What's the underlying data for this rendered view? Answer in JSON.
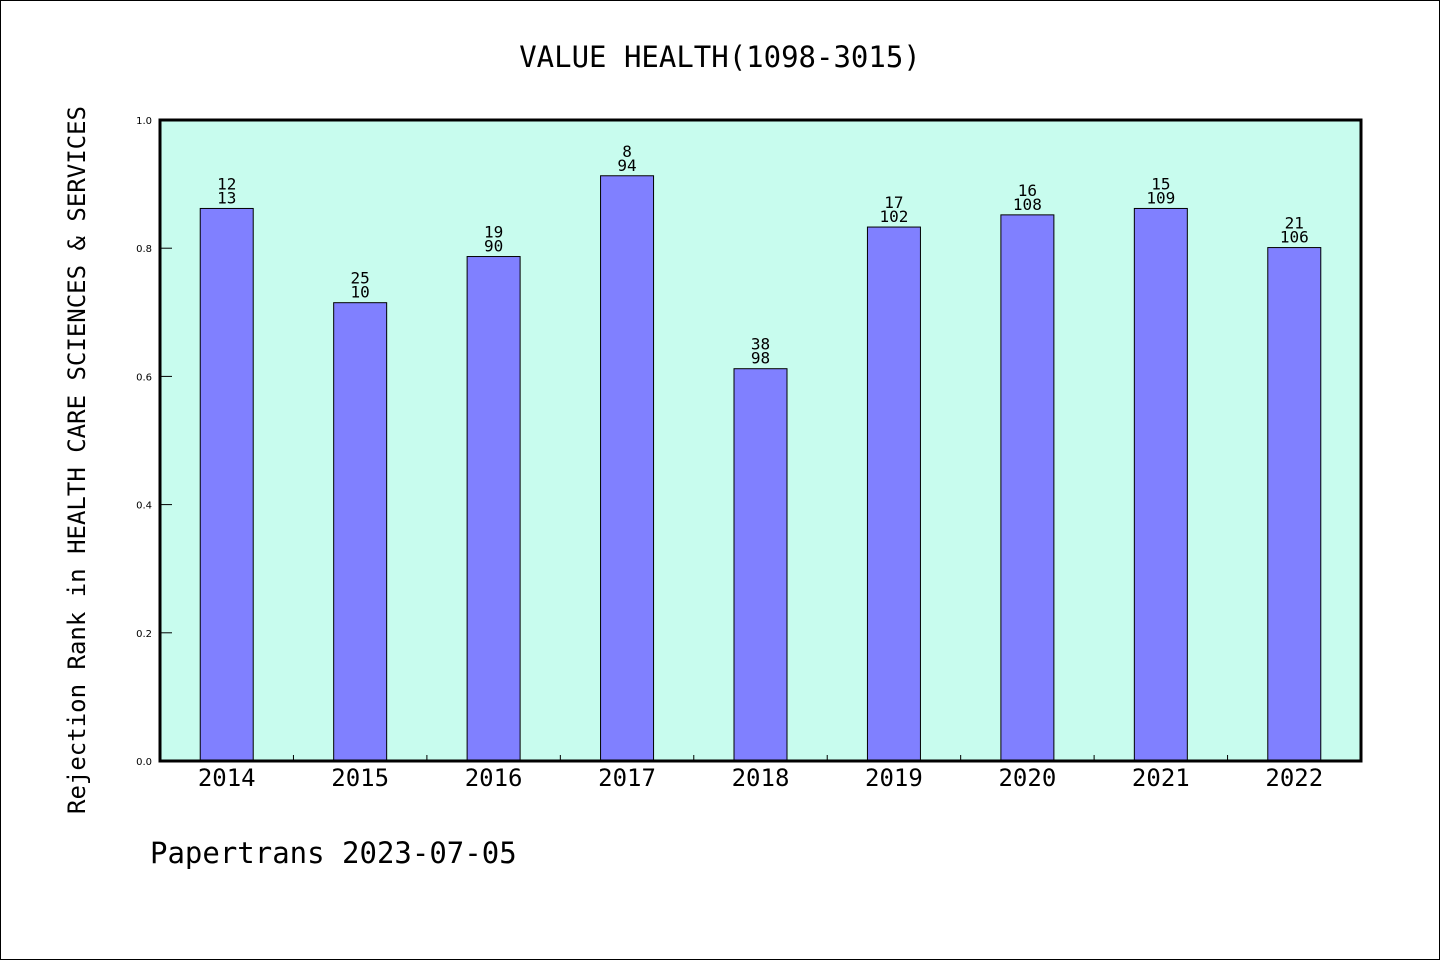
{
  "chart_data": {
    "type": "bar",
    "title": "VALUE HEALTH(1098-3015)",
    "xlabel": "",
    "ylabel": "Rejection Rank in HEALTH CARE SCIENCES & SERVICES",
    "ylim": [
      0.0,
      1.0
    ],
    "yticks": [
      "0.0",
      "0.2",
      "0.4",
      "0.6",
      "0.8",
      "1.0"
    ],
    "categories": [
      "2014",
      "2015",
      "2016",
      "2017",
      "2018",
      "2019",
      "2020",
      "2021",
      "2022"
    ],
    "values": [
      0.862,
      0.715,
      0.787,
      0.913,
      0.612,
      0.833,
      0.852,
      0.862,
      0.801
    ],
    "label_top": [
      "12",
      "25",
      "19",
      "8",
      "38",
      "17",
      "16",
      "15",
      "21"
    ],
    "label_bottom": [
      "13",
      "10",
      "90",
      "94",
      "98",
      "102",
      "108",
      "109",
      "106"
    ],
    "grid": false,
    "legend": "none"
  },
  "footer": "Papertrans 2023-07-05",
  "colors": {
    "plot_background": "#c8fcee",
    "bar_fill": "#8080ff",
    "bar_stroke": "#000000",
    "axis": "#000000",
    "text": "#000000"
  }
}
